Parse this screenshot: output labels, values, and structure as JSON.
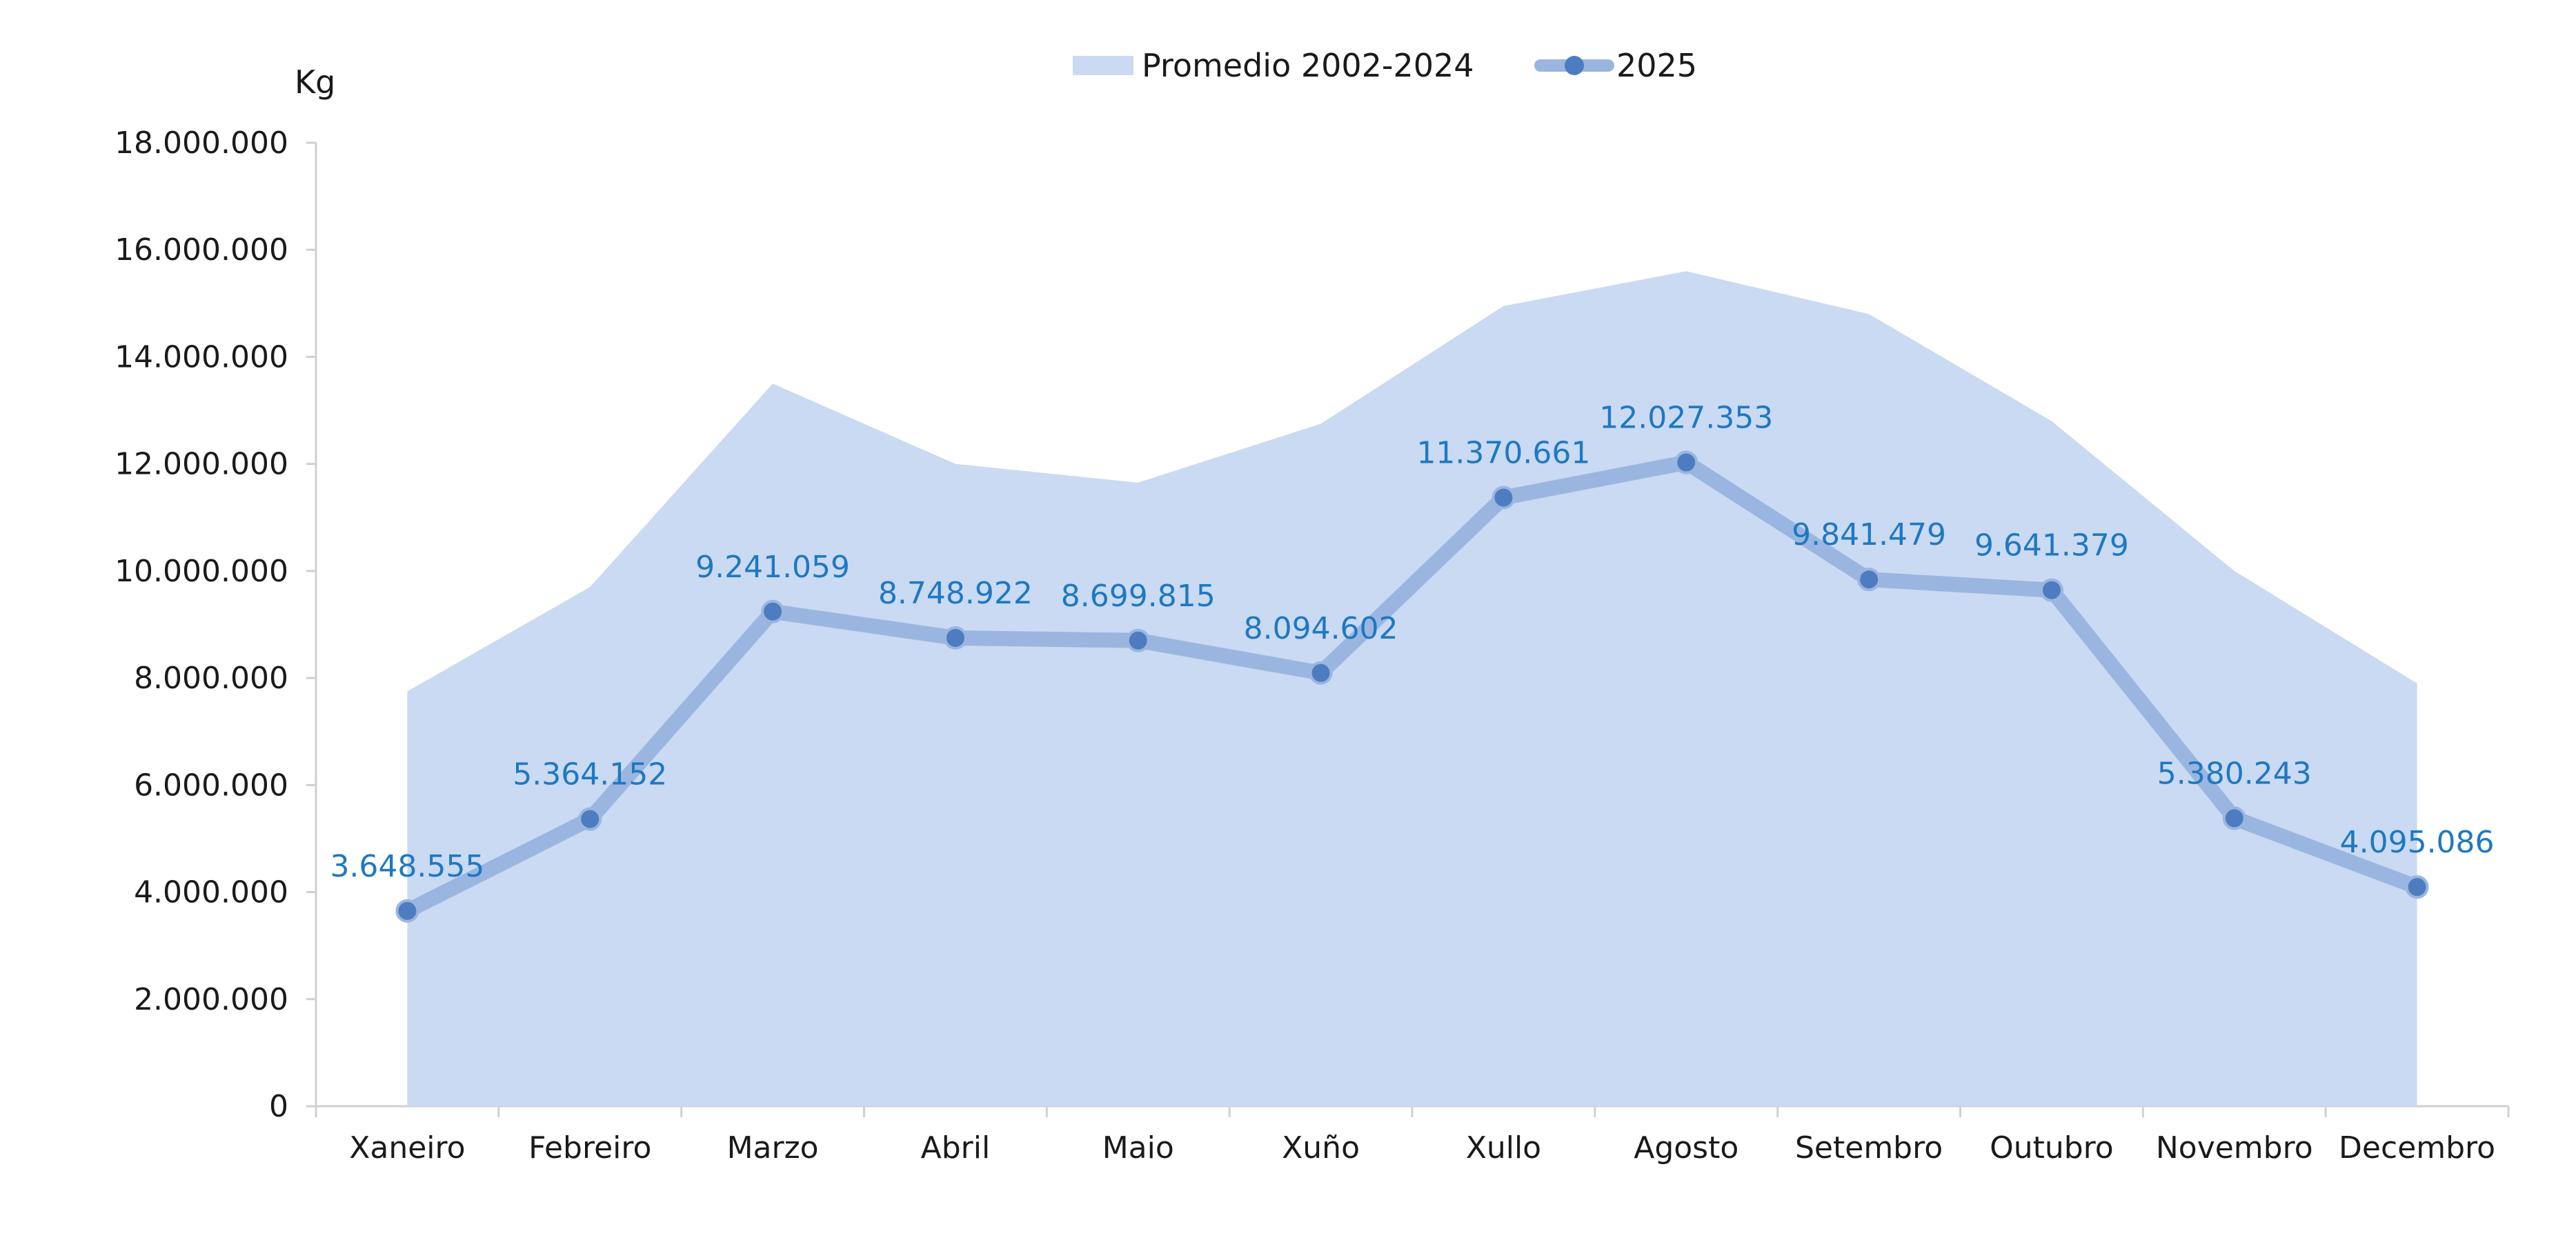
{
  "chart_data": {
    "type": "area",
    "title": "",
    "xlabel": "",
    "ylabel": "Kg",
    "ylim": [
      0,
      18000000
    ],
    "y_tick_values": [
      0,
      2000000,
      4000000,
      6000000,
      8000000,
      10000000,
      12000000,
      14000000,
      16000000,
      18000000
    ],
    "y_tick_labels": [
      "0",
      "2.000.000",
      "4.000.000",
      "6.000.000",
      "8.000.000",
      "10.000.000",
      "12.000.000",
      "14.000.000",
      "16.000.000",
      "18.000.000"
    ],
    "categories": [
      "Xaneiro",
      "Febreiro",
      "Marzo",
      "Abril",
      "Maio",
      "Xuño",
      "Xullo",
      "Agosto",
      "Setembro",
      "Outubro",
      "Novembro",
      "Decembro"
    ],
    "legend_position": "top-center",
    "grid": false,
    "series": [
      {
        "name": "Promedio 2002-2024",
        "kind": "area",
        "color": "#c9daf2",
        "values": [
          7750000,
          9700000,
          13500000,
          12000000,
          11650000,
          12750000,
          14950000,
          15600000,
          14800000,
          12800000,
          10000000,
          7900000
        ]
      },
      {
        "name": "2025",
        "kind": "line",
        "color": "#9ab6e0",
        "marker_color": "#4d7dc0",
        "label_color": "#1f78c1",
        "values": [
          3648555,
          5364152,
          9241059,
          8748922,
          8699815,
          8094602,
          11370661,
          12027353,
          9841479,
          9641379,
          5380243,
          4095086
        ],
        "labels": [
          "3.648.555",
          "5.364.152",
          "9.241.059",
          "8.748.922",
          "8.699.815",
          "8.094.602",
          "11.370.661",
          "12.027.353",
          "9.841.479",
          "9.641.379",
          "5.380.243",
          "4.095.086"
        ]
      }
    ],
    "colors": {
      "axis": "#d0d0d0",
      "text": "#1a1a1a"
    }
  }
}
